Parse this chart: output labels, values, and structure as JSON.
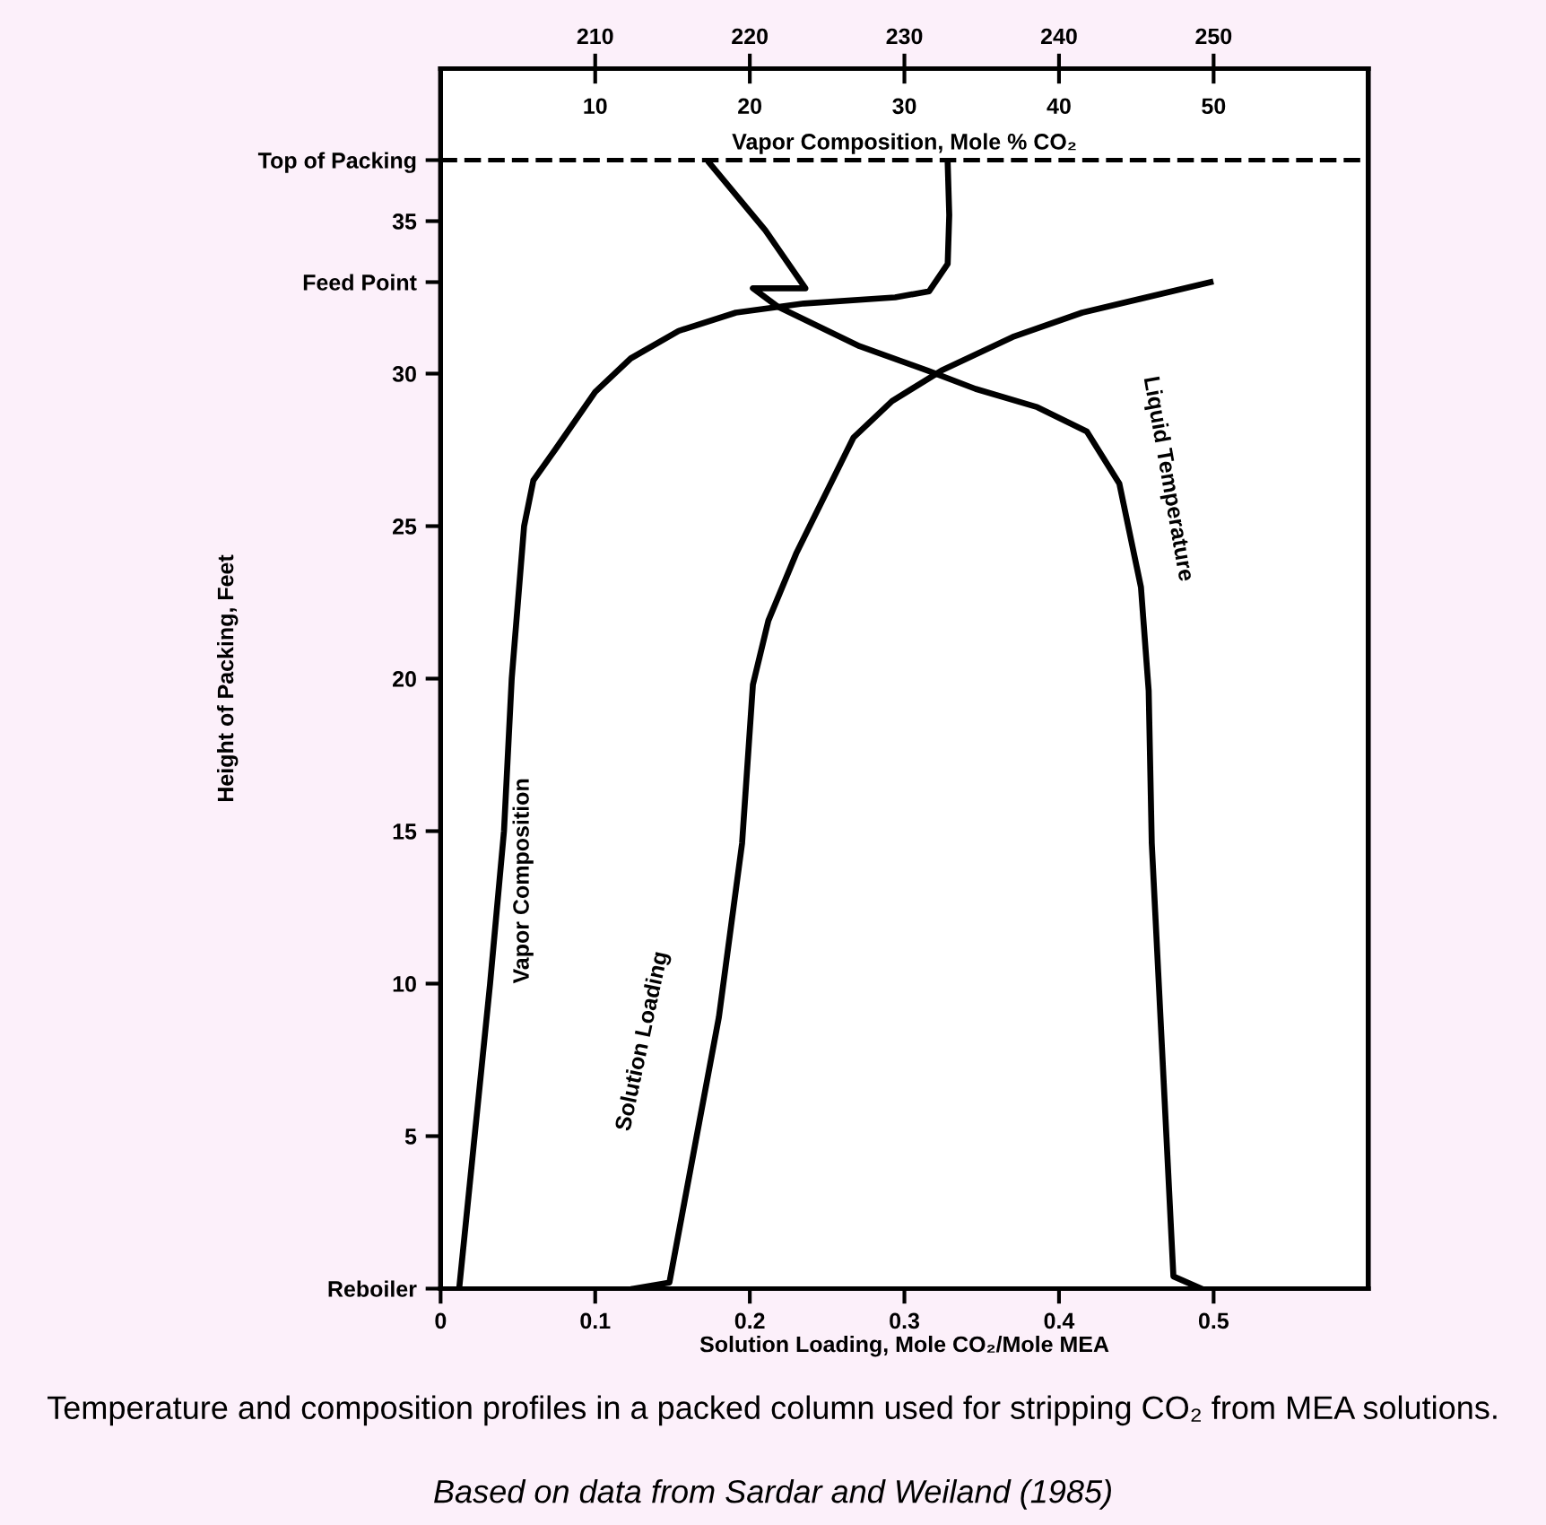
{
  "chart_data": [
    {
      "type": "line",
      "xlabel": "Solution Loading, Mole CO₂/Mole MEA",
      "x2label": "Vapor Composition, Mole % CO₂",
      "ylabel": "Height of Packing, Feet",
      "xlim": [
        0,
        0.6
      ],
      "xticks": [
        0,
        0.1,
        0.2,
        0.3,
        0.4,
        0.5
      ],
      "x2lim": [
        0,
        60
      ],
      "x2ticks": [
        10,
        20,
        30,
        40,
        50
      ],
      "ylim": [
        0,
        40
      ],
      "yticks": [
        {
          "value": 0,
          "label": "Reboiler"
        },
        5,
        10,
        15,
        20,
        25,
        30,
        {
          "value": 33,
          "label": "Feed Point"
        },
        35,
        {
          "value": 37,
          "label": "Top of Packing"
        }
      ],
      "ref_lines": [
        {
          "axis": "y",
          "value": 37,
          "label": null,
          "color": "#000000",
          "line_style": "dashed"
        }
      ],
      "grid": false,
      "series": [
        {
          "name": "Vapor Composition",
          "color": "#000000",
          "axis": "x2",
          "x": [
            1.2,
            2.2,
            3.2,
            4.1,
            4.6,
            5.0,
            5.4,
            6.0,
            7.4,
            10.0,
            12.3,
            15.4,
            19.1,
            23.5,
            29.4,
            31.6,
            32.8,
            32.9,
            32.8
          ],
          "values": [
            0,
            5,
            10,
            15,
            20,
            22.5,
            25,
            26.5,
            27.5,
            29.4,
            30.5,
            31.4,
            32.0,
            32.3,
            32.5,
            32.7,
            33.6,
            35.2,
            36.9
          ]
        },
        {
          "name": "Solution Loading",
          "color": "#000000",
          "x": [
            0.125,
            0.148,
            0.166,
            0.18,
            0.195,
            0.202,
            0.212,
            0.23,
            0.267,
            0.292,
            0.324,
            0.37,
            0.415,
            0.498
          ],
          "values": [
            0,
            0.2,
            5.1,
            8.9,
            14.6,
            19.8,
            21.9,
            24.1,
            27.9,
            29.1,
            30.1,
            31.2,
            32.0,
            33.0
          ]
        }
      ],
      "annotations": [
        "Temperature and composition profiles in a packed column used for stripping CO₂ from MEA solutions.",
        "Based on data from Sardar and Weiland (1985)"
      ]
    },
    {
      "type": "line",
      "xlim": [
        200,
        260
      ],
      "xticks": [
        210,
        220,
        230,
        240,
        250
      ],
      "ylim": [
        0,
        40
      ],
      "tick_labels": "x",
      "grid": false,
      "series": [
        {
          "name": "Liquid Temperature",
          "color": "#000000",
          "x": [
            249.2,
            247.4,
            246.0,
            245.8,
            245.3,
            243.9,
            241.8,
            238.6,
            234.6,
            231.5,
            227.1,
            221.8,
            220.2,
            223.6,
            221.0,
            217.4
          ],
          "values": [
            0,
            0.4,
            14.6,
            19.6,
            23.0,
            26.4,
            28.1,
            28.9,
            29.5,
            30.1,
            30.9,
            32.2,
            32.8,
            32.8,
            34.7,
            36.9
          ]
        }
      ]
    }
  ]
}
